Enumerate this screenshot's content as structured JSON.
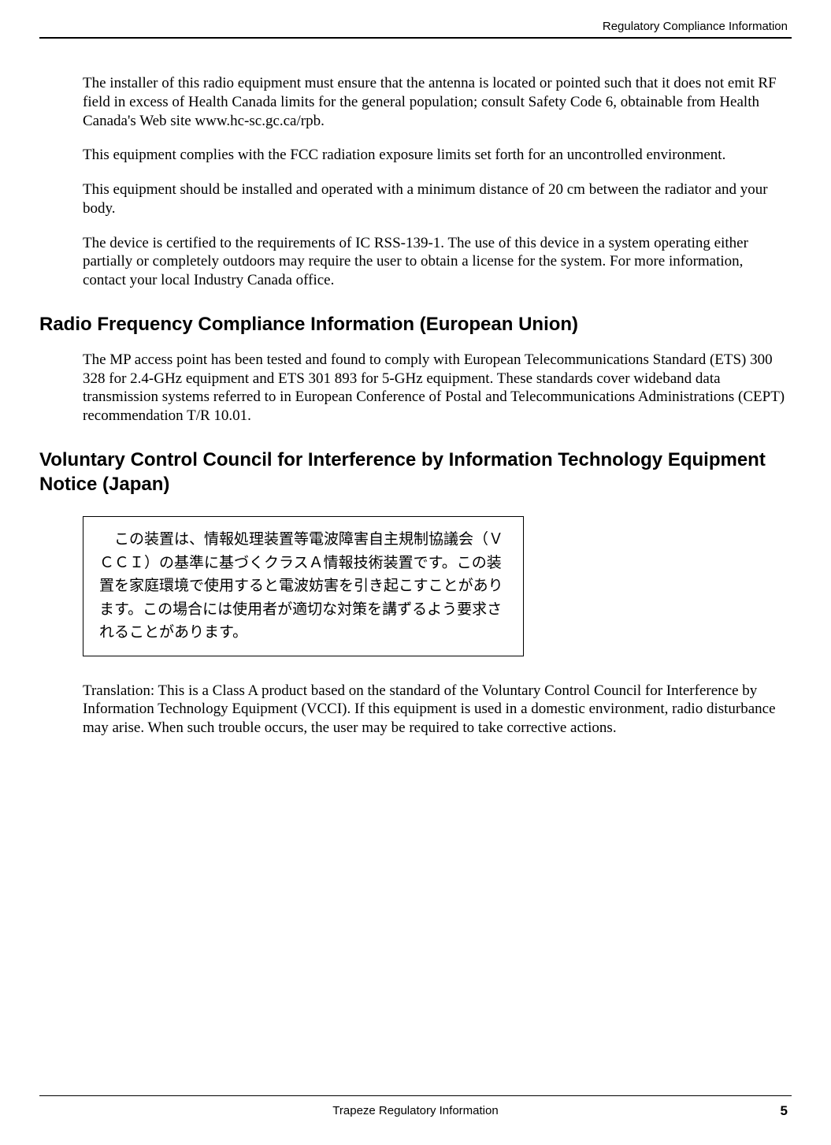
{
  "header": {
    "text": "Regulatory Compliance Information"
  },
  "paragraphs": {
    "p1": "The installer of this radio equipment must ensure that the antenna is located or pointed such that it does not emit RF field in excess of Health Canada limits for the general population; consult Safety Code 6, obtainable from Health Canada's Web site www.hc-sc.gc.ca/rpb.",
    "p2": "This equipment complies with the FCC radiation exposure limits set forth for an uncontrolled environment.",
    "p3": "This equipment should be installed and operated with a minimum distance of 20 cm between the radiator and your body.",
    "p4": "The device is certified to the requirements of IC RSS-139-1. The use of this device in a system operating either partially or completely outdoors may require the user to obtain a license for the system. For more information, contact your local Industry Canada office.",
    "p5": "The MP access point has been tested and found to comply with European Telecommunications Standard (ETS) 300 328 for 2.4-GHz equipment and ETS 301 893 for 5-GHz equipment. These standards cover wideband data transmission systems referred to in European Conference of Postal and Telecommunications Administrations (CEPT) recommendation T/R 10.01.",
    "p6": "Translation: This is a Class A product based on the standard of the Voluntary Control Council for Interference by Information Technology Equipment (VCCI). If this equipment is used in a domestic environment, radio disturbance may arise. When such trouble occurs, the user may be required to take corrective actions."
  },
  "headings": {
    "h1": "Radio Frequency Compliance Information (European Union)",
    "h2": "Voluntary Control Council for Interference by Information Technology Equipment Notice (Japan)"
  },
  "japanese": {
    "text": "この装置は、情報処理装置等電波障害自主規制協議会（ＶＣＣＩ）の基準に基づくクラスＡ情報技術装置です。この装置を家庭環境で使用すると電波妨害を引き起こすことがあります。この場合には使用者が適切な対策を講ずるよう要求されることがあります。"
  },
  "footer": {
    "title": "Trapeze Regulatory Information",
    "page": "5"
  }
}
